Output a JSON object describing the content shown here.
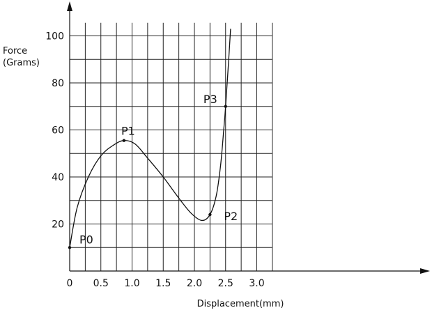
{
  "chart_data": {
    "type": "line",
    "ylabel_line1": "Force",
    "ylabel_line2": "(Grams)",
    "xlabel": "Displacement(mm)",
    "xlim": [
      0,
      3.25
    ],
    "ylim": [
      0,
      110
    ],
    "x_ticks": [
      "0",
      "0.5",
      "1.0",
      "1.5",
      "2.0",
      "2.5",
      "3.0"
    ],
    "y_ticks": [
      "20",
      "40",
      "60",
      "80",
      "100"
    ],
    "grid": true,
    "grid_x": [
      0.25,
      0.5,
      0.75,
      1.0,
      1.25,
      1.5,
      1.75,
      2.0,
      2.25,
      2.5,
      2.75,
      3.0,
      3.25
    ],
    "grid_y": [
      10,
      20,
      30,
      40,
      50,
      60,
      70,
      80,
      90,
      100
    ],
    "series": [
      {
        "values": [
          {
            "x": 0.0,
            "y": 10
          },
          {
            "x": 0.12,
            "y": 27
          },
          {
            "x": 0.3,
            "y": 40
          },
          {
            "x": 0.5,
            "y": 49
          },
          {
            "x": 0.7,
            "y": 53.5
          },
          {
            "x": 0.87,
            "y": 55.5
          },
          {
            "x": 1.05,
            "y": 54
          },
          {
            "x": 1.25,
            "y": 48
          },
          {
            "x": 1.5,
            "y": 40
          },
          {
            "x": 1.75,
            "y": 31
          },
          {
            "x": 1.95,
            "y": 24.5
          },
          {
            "x": 2.12,
            "y": 21.5
          },
          {
            "x": 2.25,
            "y": 24
          },
          {
            "x": 2.35,
            "y": 32
          },
          {
            "x": 2.42,
            "y": 45
          },
          {
            "x": 2.47,
            "y": 60
          },
          {
            "x": 2.5,
            "y": 70
          },
          {
            "x": 2.55,
            "y": 90
          },
          {
            "x": 2.58,
            "y": 103
          }
        ]
      }
    ],
    "points": [
      {
        "label": "P0",
        "x": 0.0,
        "y": 10
      },
      {
        "label": "P1",
        "x": 0.87,
        "y": 55.5
      },
      {
        "label": "P2",
        "x": 2.25,
        "y": 24
      },
      {
        "label": "P3",
        "x": 2.5,
        "y": 70
      }
    ]
  }
}
